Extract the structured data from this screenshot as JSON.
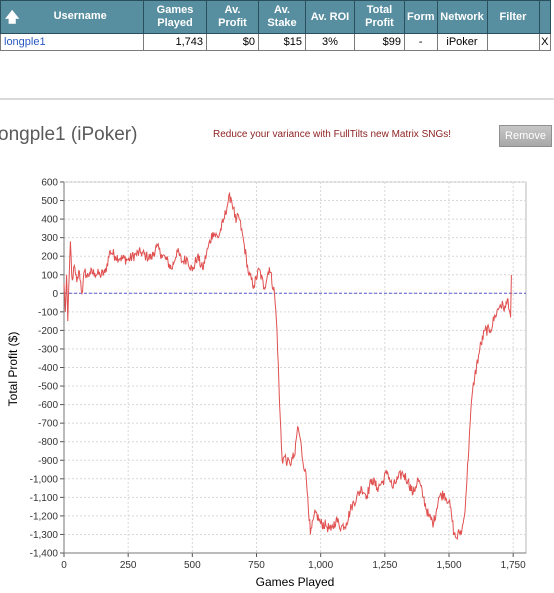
{
  "table": {
    "headers": [
      "Username",
      "Games Played",
      "Av. Profit",
      "Av. Stake",
      "Av. ROI",
      "Total Profit",
      "Form",
      "Network",
      "Filter"
    ],
    "header_lines": {
      "games_played": [
        "Games",
        "Played"
      ],
      "av_profit": [
        "Av.",
        "Profit"
      ],
      "av_stake": [
        "Av.",
        "Stake"
      ],
      "total_profit": [
        "Total",
        "Profit"
      ]
    },
    "sort_icon": "up-arrow-icon",
    "row": {
      "username": "longple1",
      "games_played": "1,743",
      "av_profit": "$0",
      "av_stake": "$15",
      "av_roi": "3%",
      "total_profit": "$99",
      "form": "-",
      "network": "iPoker",
      "filter": "",
      "close": "X"
    }
  },
  "player_title": "ongple1 (iPoker)",
  "promo_text": "Reduce your variance with FullTilts new Matrix SNGs!",
  "remove_label": "Remove",
  "colors": {
    "header_bg": "#588fa0",
    "line": "#e05050",
    "zero_line": "#5a5ad0",
    "link": "#2a59c4"
  },
  "chart_data": {
    "type": "line",
    "xlabel": "Games Played",
    "ylabel": "Total Profit ($)",
    "xlim": [
      0,
      1800
    ],
    "ylim": [
      -1400,
      600
    ],
    "xticks": [
      0,
      250,
      500,
      750,
      1000,
      1250,
      1500,
      1750
    ],
    "xtick_labels": [
      "0",
      "250",
      "500",
      "750",
      "1,000",
      "1,250",
      "1,500",
      "1,750"
    ],
    "yticks": [
      600,
      500,
      400,
      300,
      200,
      100,
      0,
      -100,
      -200,
      -300,
      -400,
      -500,
      -600,
      -700,
      -800,
      -900,
      -1000,
      -1100,
      -1200,
      -1300,
      -1400
    ],
    "ytick_labels": [
      "600",
      "500",
      "400",
      "300",
      "200",
      "100",
      "0",
      "-100",
      "-200",
      "-300",
      "-400",
      "-500",
      "-600",
      "-700",
      "-800",
      "-900",
      "-1,000",
      "-1,100",
      "-1,200",
      "-1,300",
      "-1,400"
    ],
    "grid": true,
    "zero_line": true,
    "series": [
      {
        "x": [
          0,
          5,
          10,
          15,
          20,
          25,
          30,
          35,
          40,
          45,
          50,
          60,
          70,
          80,
          90,
          100,
          120,
          140,
          160,
          180,
          200,
          220,
          250,
          280,
          300,
          320,
          340,
          360,
          380,
          400,
          420,
          440,
          460,
          480,
          500,
          520,
          540,
          560,
          580,
          600,
          620,
          640,
          650,
          660,
          670,
          680,
          700,
          720,
          740,
          760,
          780,
          800,
          820,
          830,
          840,
          850,
          860,
          870,
          880,
          890,
          900,
          910,
          920,
          930,
          940,
          950,
          960,
          980,
          1000,
          1020,
          1040,
          1060,
          1080,
          1100,
          1120,
          1140,
          1160,
          1180,
          1200,
          1220,
          1240,
          1260,
          1280,
          1300,
          1320,
          1340,
          1360,
          1380,
          1400,
          1420,
          1440,
          1460,
          1480,
          1500,
          1510,
          1520,
          1530,
          1540,
          1550,
          1560,
          1570,
          1580,
          1590,
          1600,
          1620,
          1640,
          1660,
          1680,
          1700,
          1720,
          1730,
          1740,
          1743
        ],
        "y": [
          50,
          -100,
          100,
          -150,
          80,
          280,
          100,
          80,
          150,
          100,
          60,
          120,
          0,
          120,
          90,
          110,
          110,
          100,
          110,
          230,
          200,
          190,
          180,
          210,
          220,
          200,
          190,
          250,
          210,
          180,
          130,
          230,
          170,
          190,
          120,
          200,
          130,
          240,
          330,
          300,
          380,
          500,
          520,
          460,
          380,
          420,
          280,
          100,
          40,
          130,
          30,
          140,
          0,
          -200,
          -600,
          -900,
          -880,
          -910,
          -920,
          -890,
          -870,
          -720,
          -780,
          -900,
          -950,
          -1100,
          -1300,
          -1180,
          -1240,
          -1250,
          -1280,
          -1220,
          -1260,
          -1240,
          -1150,
          -1100,
          -1050,
          -1090,
          -1000,
          -1050,
          -1020,
          -960,
          -1050,
          -1000,
          -970,
          -1010,
          -1080,
          -1000,
          -1100,
          -1200,
          -1240,
          -1100,
          -1080,
          -1120,
          -1200,
          -1300,
          -1320,
          -1290,
          -1280,
          -1200,
          -1000,
          -750,
          -550,
          -450,
          -300,
          -200,
          -200,
          -120,
          -60,
          -80,
          -30,
          -130,
          99
        ]
      }
    ]
  }
}
